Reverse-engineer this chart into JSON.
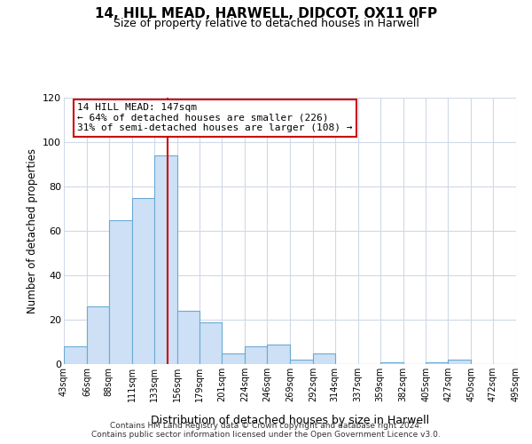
{
  "title": "14, HILL MEAD, HARWELL, DIDCOT, OX11 0FP",
  "subtitle": "Size of property relative to detached houses in Harwell",
  "xlabel": "Distribution of detached houses by size in Harwell",
  "ylabel": "Number of detached properties",
  "bar_color": "#cde0f5",
  "bar_edge_color": "#6aaad4",
  "bin_edges": [
    43,
    66,
    88,
    111,
    133,
    156,
    179,
    201,
    224,
    246,
    269,
    292,
    314,
    337,
    359,
    382,
    405,
    427,
    450,
    472,
    495
  ],
  "bin_labels": [
    "43sqm",
    "66sqm",
    "88sqm",
    "111sqm",
    "133sqm",
    "156sqm",
    "179sqm",
    "201sqm",
    "224sqm",
    "246sqm",
    "269sqm",
    "292sqm",
    "314sqm",
    "337sqm",
    "359sqm",
    "382sqm",
    "405sqm",
    "427sqm",
    "450sqm",
    "472sqm",
    "495sqm"
  ],
  "counts": [
    8,
    26,
    65,
    75,
    94,
    24,
    19,
    5,
    8,
    9,
    2,
    5,
    0,
    0,
    1,
    0,
    1,
    2,
    0,
    0
  ],
  "vline_x": 147,
  "vline_color": "#cc0000",
  "annotation_box_text": "14 HILL MEAD: 147sqm\n← 64% of detached houses are smaller (226)\n31% of semi-detached houses are larger (108) →",
  "ylim": [
    0,
    120
  ],
  "yticks": [
    0,
    20,
    40,
    60,
    80,
    100,
    120
  ],
  "background_color": "#ffffff",
  "grid_color": "#d0d8e8",
  "footer_line1": "Contains HM Land Registry data © Crown copyright and database right 2024.",
  "footer_line2": "Contains public sector information licensed under the Open Government Licence v3.0."
}
